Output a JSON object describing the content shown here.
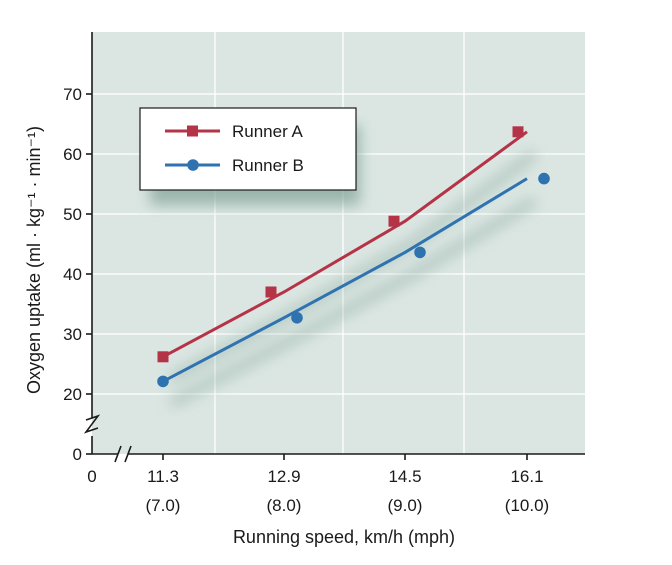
{
  "colors": {
    "plot_background": "#dbe6e2",
    "grid": "#ffffff",
    "axis": "#1a1a1a",
    "runner_a": "#b53347",
    "runner_b": "#2f72b0",
    "legend_background": "#ffffff",
    "shadow": "#7f9f96"
  },
  "chart_data": {
    "type": "line",
    "title": "",
    "xlabel": "Running speed, km/h (mph)",
    "ylabel": "Oxygen uptake (ml · kg⁻¹ · min⁻¹)",
    "ylim": [
      0,
      80
    ],
    "axis_break": true,
    "grid": true,
    "legend_position": "top-left",
    "origin_label": "0",
    "x_ticks": [
      {
        "value": 11.3,
        "label": "11.3",
        "sublabel": "(7.0)"
      },
      {
        "value": 12.9,
        "label": "12.9",
        "sublabel": "(8.0)"
      },
      {
        "value": 14.5,
        "label": "14.5",
        "sublabel": "(9.0)"
      },
      {
        "value": 16.1,
        "label": "16.1",
        "sublabel": "(10.0)"
      }
    ],
    "y_ticks": [
      0,
      20,
      30,
      40,
      50,
      60,
      70
    ],
    "series": [
      {
        "name": "Runner A",
        "marker": "square",
        "x": [
          11.3,
          12.9,
          14.5,
          16.1
        ],
        "y": [
          26.2,
          37.0,
          48.8,
          63.7
        ]
      },
      {
        "name": "Runner B",
        "marker": "circle",
        "x": [
          11.3,
          12.9,
          14.5,
          16.1
        ],
        "y": [
          22.1,
          32.7,
          43.6,
          55.9
        ]
      }
    ]
  }
}
